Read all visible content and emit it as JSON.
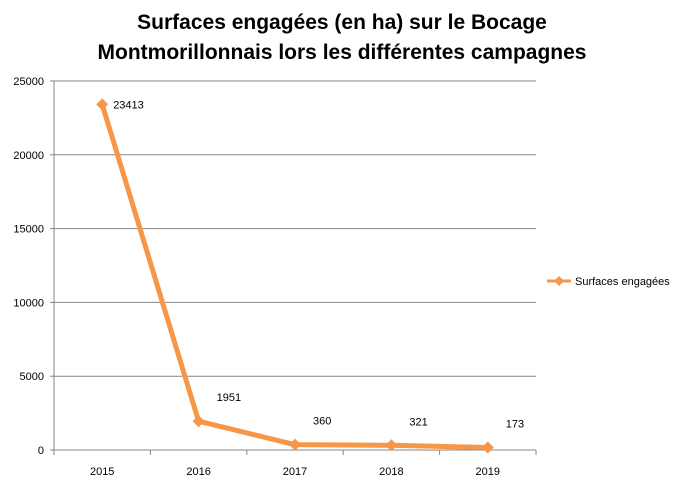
{
  "chart_data": {
    "type": "line",
    "title_lines": [
      "Surfaces engagées (en ha) sur le Bocage",
      "Montmorillonnais lors les différentes campagnes"
    ],
    "categories": [
      "2015",
      "2016",
      "2017",
      "2018",
      "2019"
    ],
    "series": [
      {
        "name": "Surfaces engagées",
        "values": [
          23413,
          1951,
          360,
          321,
          173
        ],
        "color": "#F79646"
      }
    ],
    "data_labels": [
      "23413",
      "1951",
      "360",
      "321",
      "173"
    ],
    "yticks": [
      "0",
      "5000",
      "10000",
      "15000",
      "20000",
      "25000"
    ],
    "ylim": [
      0,
      25000
    ],
    "grid": true,
    "legend": "right",
    "xlabel": "",
    "ylabel": ""
  }
}
